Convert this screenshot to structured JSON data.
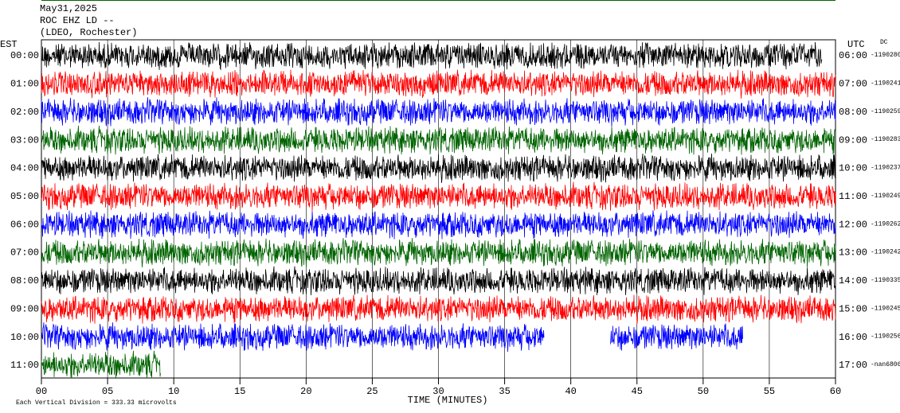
{
  "chart_data": {
    "type": "helicorder",
    "title_lines": [
      "May31,2025",
      "ROC EHZ LD --",
      "(LDEO, Rochester)"
    ],
    "left_axis_label": "EST",
    "right_axis_label": "UTC",
    "dc_label": "DC",
    "xlabel": "TIME (MINUTES)",
    "footer": "Each Vertical Division =  333.33 microvolts",
    "xlim": [
      0,
      60
    ],
    "xticks": [
      {
        "value": 0,
        "label": "00"
      },
      {
        "value": 5,
        "label": "05"
      },
      10,
      15,
      20,
      25,
      30,
      35,
      40,
      45,
      50,
      55,
      60
    ],
    "rows": [
      {
        "est": "00:00",
        "utc": "06:00",
        "dc": "-1190280",
        "color": "#000000",
        "segments": [
          [
            0,
            59
          ]
        ]
      },
      {
        "est": "01:00",
        "utc": "07:00",
        "dc": "-1190241",
        "color": "#ff0000",
        "segments": [
          [
            0,
            60
          ]
        ]
      },
      {
        "est": "02:00",
        "utc": "08:00",
        "dc": "-1190259",
        "color": "#0000ff",
        "segments": [
          [
            0,
            60
          ]
        ]
      },
      {
        "est": "03:00",
        "utc": "09:00",
        "dc": "-1190283",
        "color": "#006400",
        "segments": [
          [
            0,
            60
          ]
        ]
      },
      {
        "est": "04:00",
        "utc": "10:00",
        "dc": "-1190237",
        "color": "#000000",
        "segments": [
          [
            0,
            60
          ]
        ]
      },
      {
        "est": "05:00",
        "utc": "11:00",
        "dc": "-1190249",
        "color": "#ff0000",
        "segments": [
          [
            0,
            60
          ]
        ]
      },
      {
        "est": "06:00",
        "utc": "12:00",
        "dc": "-1190262",
        "color": "#0000ff",
        "segments": [
          [
            0,
            60
          ]
        ]
      },
      {
        "est": "07:00",
        "utc": "13:00",
        "dc": "-1190242",
        "color": "#006400",
        "segments": [
          [
            0,
            60
          ]
        ]
      },
      {
        "est": "08:00",
        "utc": "14:00",
        "dc": "-1190335",
        "color": "#000000",
        "segments": [
          [
            0,
            60
          ]
        ]
      },
      {
        "est": "09:00",
        "utc": "15:00",
        "dc": "-1190245",
        "color": "#ff0000",
        "segments": [
          [
            0,
            60
          ]
        ]
      },
      {
        "est": "10:00",
        "utc": "16:00",
        "dc": "-1190256",
        "color": "#0000ff",
        "segments": [
          [
            0,
            38
          ],
          [
            43,
            53
          ]
        ]
      },
      {
        "est": "11:00",
        "utc": "17:00",
        "dc": "-nan6806",
        "color": "#006400",
        "segments": [
          [
            0,
            9
          ]
        ]
      }
    ]
  }
}
